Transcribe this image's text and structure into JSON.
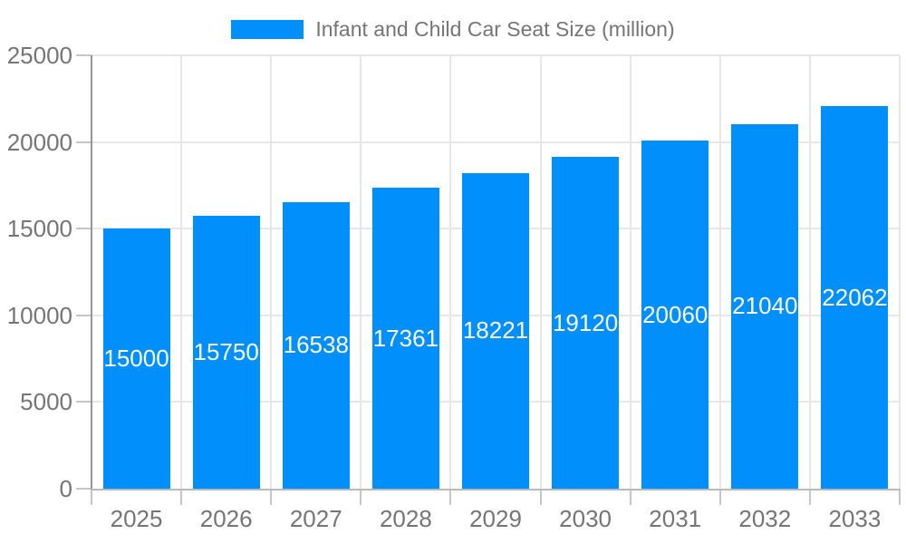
{
  "chart_data": {
    "type": "bar",
    "title": "Infant and Child Car Seat Size (million)",
    "legend": {
      "label": "Infant and Child Car Seat Size (million)",
      "position": "top"
    },
    "categories": [
      "2025",
      "2026",
      "2027",
      "2028",
      "2029",
      "2030",
      "2031",
      "2032",
      "2033"
    ],
    "values": [
      15000,
      15750,
      16538,
      17361,
      18221,
      19120,
      20060,
      21040,
      22062
    ],
    "xlabel": "",
    "ylabel": "",
    "ylim": [
      0,
      25000
    ],
    "yticks": [
      0,
      5000,
      10000,
      15000,
      20000,
      25000
    ],
    "grid": true,
    "colors": {
      "bar": "#008FFB",
      "bar_label": "#FFFFFF",
      "axis_text": "#757575",
      "gridline": "#E7E7E7",
      "y_axis_line": "#969696",
      "x_axis_line": "#B9B9B9",
      "tick": "#C6C6C6",
      "background": "#FFFFFF"
    }
  }
}
